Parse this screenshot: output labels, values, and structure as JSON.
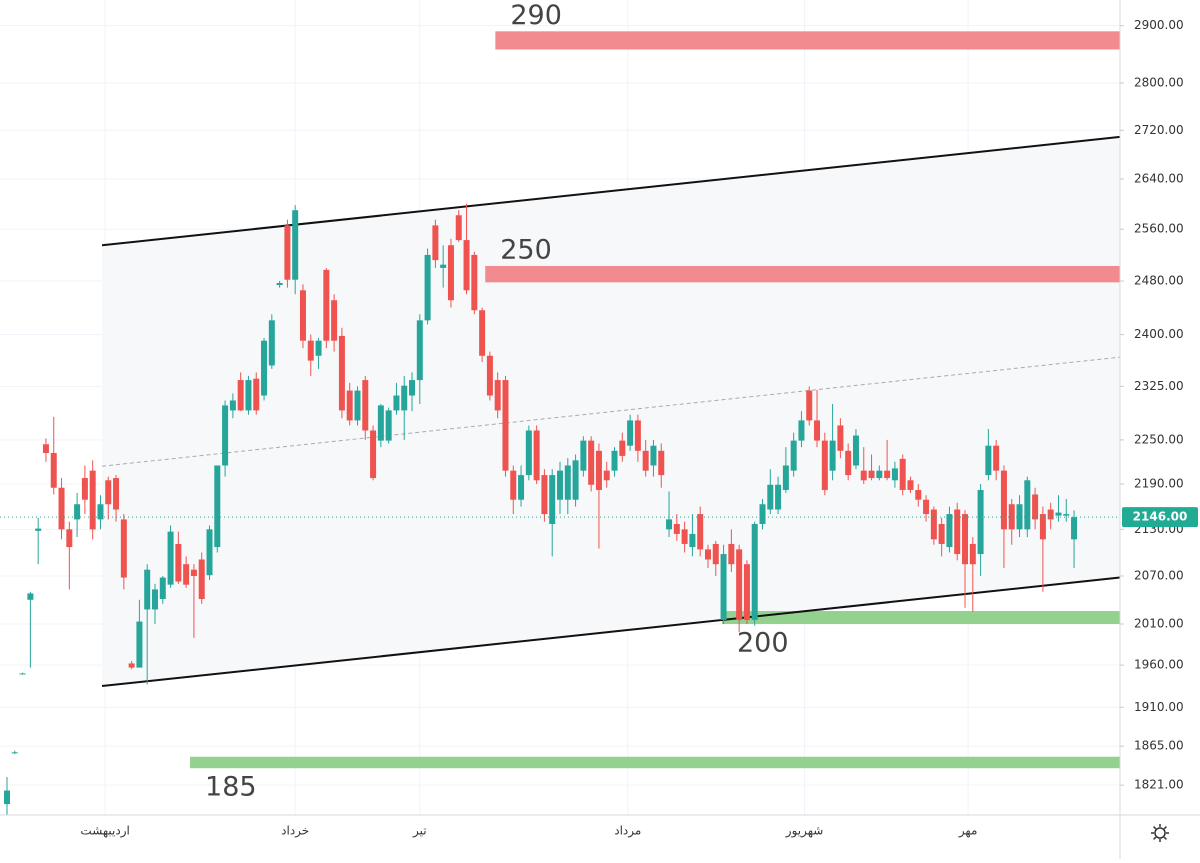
{
  "chart_data": {
    "type": "candlestick",
    "log_scale": true,
    "grid": true,
    "up_color": "#26a69a",
    "down_color": "#ef5350",
    "xlim": [
      -0.9,
      142.9
    ],
    "xticks": [
      {
        "value": 12.6,
        "label": "اردیبهشت"
      },
      {
        "value": 37,
        "label": "خرداد"
      },
      {
        "value": 53,
        "label": "تیر"
      },
      {
        "value": 79.7,
        "label": "مرداد"
      },
      {
        "value": 102.4,
        "label": "شهریور"
      },
      {
        "value": 123.4,
        "label": "مهر"
      }
    ],
    "ylim": [
      1788,
      2946
    ],
    "yticks": [
      {
        "value": 2900,
        "label": "2900.00"
      },
      {
        "value": 2800,
        "label": "2800.00"
      },
      {
        "value": 2720,
        "label": "2720.00"
      },
      {
        "value": 2640,
        "label": "2640.00"
      },
      {
        "value": 2560,
        "label": "2560.00"
      },
      {
        "value": 2480,
        "label": "2480.00"
      },
      {
        "value": 2400,
        "label": "2400.00"
      },
      {
        "value": 2325,
        "label": "2325.00"
      },
      {
        "value": 2250,
        "label": "2250.00"
      },
      {
        "value": 2190,
        "label": "2190.00"
      },
      {
        "value": 2130,
        "label": "2130.00"
      },
      {
        "value": 2070,
        "label": "2070.00"
      },
      {
        "value": 2010,
        "label": "2010.00"
      },
      {
        "value": 1960,
        "label": "1960.00"
      },
      {
        "value": 1910,
        "label": "1910.00"
      },
      {
        "value": 1865,
        "label": "1865.00"
      },
      {
        "value": 1821,
        "label": "1821.00"
      }
    ],
    "price_line": {
      "value": 2146,
      "label": "2146.00",
      "color": "#22ab94"
    },
    "trendlines": [
      {
        "start": [
          12.2,
          2535
        ],
        "end": [
          142.9,
          2709
        ],
        "style": "solid"
      },
      {
        "start": [
          12.2,
          1935
        ],
        "end": [
          142.9,
          2068
        ],
        "style": "solid"
      },
      {
        "start": [
          12.2,
          2214
        ],
        "end": [
          142.9,
          2367
        ],
        "style": "dashed"
      }
    ],
    "zones": [
      {
        "label": "290",
        "start": 62.7,
        "range": [
          2858,
          2890
        ],
        "color": "#f28b8f",
        "label_side": "above"
      },
      {
        "label": "250",
        "start": 61.4,
        "range": [
          2478,
          2503
        ],
        "color": "#f28b8f",
        "label_side": "above"
      },
      {
        "label": "200",
        "start": 91.8,
        "range": [
          2010,
          2026
        ],
        "color": "#93d18f",
        "label_side": "below"
      },
      {
        "label": "185",
        "start": 23.5,
        "range": [
          1840,
          1853
        ],
        "color": "#93d18f",
        "label_side": "below"
      }
    ],
    "ohlc": [
      [
        1800,
        1830,
        1788,
        1815
      ],
      [
        1858,
        1860,
        1856,
        1858
      ],
      [
        1950,
        1951,
        1949,
        1950
      ],
      [
        2040,
        2050,
        1957,
        2048
      ],
      [
        2128,
        2145,
        2085,
        2131
      ],
      [
        2244,
        2252,
        2220,
        2232
      ],
      [
        2232,
        2282,
        2176,
        2185
      ],
      [
        2185,
        2198,
        2117,
        2130
      ],
      [
        2130,
        2140,
        2053,
        2107
      ],
      [
        2143,
        2178,
        2120,
        2163
      ],
      [
        2198,
        2215,
        2150,
        2169
      ],
      [
        2208,
        2222,
        2117,
        2130
      ],
      [
        2143,
        2175,
        2130,
        2163
      ],
      [
        2195,
        2200,
        2143,
        2163
      ],
      [
        2198,
        2202,
        2140,
        2156
      ],
      [
        2143,
        2150,
        2053,
        2068
      ],
      [
        1962,
        1965,
        1955,
        1957
      ],
      [
        1957,
        2040,
        1957,
        2013
      ],
      [
        2028,
        2085,
        1937,
        2078
      ],
      [
        2028,
        2060,
        2010,
        2053
      ],
      [
        2041,
        2070,
        2035,
        2068
      ],
      [
        2059,
        2135,
        2055,
        2127
      ],
      [
        2111,
        2127,
        2060,
        2063
      ],
      [
        2085,
        2095,
        2055,
        2059
      ],
      [
        2078,
        2085,
        1993,
        2070
      ],
      [
        2091,
        2100,
        2035,
        2041
      ],
      [
        2071,
        2135,
        2065,
        2130
      ],
      [
        2107,
        2215,
        2100,
        2215
      ],
      [
        2215,
        2305,
        2200,
        2298
      ],
      [
        2291,
        2315,
        2280,
        2305
      ],
      [
        2334,
        2345,
        2290,
        2291
      ],
      [
        2291,
        2340,
        2285,
        2334
      ],
      [
        2336,
        2345,
        2285,
        2291
      ],
      [
        2312,
        2395,
        2305,
        2391
      ],
      [
        2355,
        2430,
        2350,
        2421
      ],
      [
        2474,
        2480,
        2470,
        2477
      ],
      [
        2566,
        2575,
        2470,
        2482
      ],
      [
        2482,
        2598,
        2460,
        2590
      ],
      [
        2466,
        2475,
        2380,
        2391
      ],
      [
        2391,
        2400,
        2340,
        2362
      ],
      [
        2369,
        2395,
        2350,
        2391
      ],
      [
        2497,
        2500,
        2380,
        2391
      ],
      [
        2451,
        2460,
        2375,
        2391
      ],
      [
        2398,
        2410,
        2280,
        2291
      ],
      [
        2319,
        2330,
        2270,
        2277
      ],
      [
        2277,
        2325,
        2270,
        2319
      ],
      [
        2334,
        2340,
        2250,
        2263
      ],
      [
        2263,
        2270,
        2195,
        2198
      ],
      [
        2249,
        2300,
        2240,
        2298
      ],
      [
        2249,
        2295,
        2245,
        2291
      ],
      [
        2291,
        2330,
        2285,
        2312
      ],
      [
        2291,
        2340,
        2250,
        2326
      ],
      [
        2312,
        2345,
        2290,
        2334
      ],
      [
        2334,
        2430,
        2300,
        2421
      ],
      [
        2421,
        2530,
        2415,
        2520
      ],
      [
        2566,
        2575,
        2500,
        2512
      ],
      [
        2500,
        2535,
        2470,
        2505
      ],
      [
        2535,
        2545,
        2440,
        2451
      ],
      [
        2582,
        2590,
        2540,
        2543
      ],
      [
        2543,
        2600,
        2460,
        2466
      ],
      [
        2520,
        2525,
        2430,
        2436
      ],
      [
        2436,
        2440,
        2360,
        2369
      ],
      [
        2369,
        2375,
        2305,
        2312
      ],
      [
        2334,
        2345,
        2280,
        2291
      ],
      [
        2334,
        2340,
        2200,
        2208
      ],
      [
        2208,
        2215,
        2150,
        2169
      ],
      [
        2169,
        2215,
        2160,
        2202
      ],
      [
        2202,
        2270,
        2195,
        2263
      ],
      [
        2263,
        2270,
        2190,
        2195
      ],
      [
        2202,
        2210,
        2140,
        2150
      ],
      [
        2137,
        2210,
        2095,
        2202
      ],
      [
        2169,
        2220,
        2150,
        2208
      ],
      [
        2169,
        2225,
        2150,
        2215
      ],
      [
        2169,
        2230,
        2160,
        2222
      ],
      [
        2208,
        2255,
        2200,
        2249
      ],
      [
        2249,
        2255,
        2180,
        2189
      ],
      [
        2235,
        2245,
        2105,
        2182
      ],
      [
        2208,
        2220,
        2185,
        2195
      ],
      [
        2208,
        2240,
        2200,
        2235
      ],
      [
        2249,
        2260,
        2220,
        2228
      ],
      [
        2242,
        2285,
        2235,
        2277
      ],
      [
        2277,
        2285,
        2220,
        2235
      ],
      [
        2235,
        2250,
        2200,
        2208
      ],
      [
        2215,
        2250,
        2200,
        2242
      ],
      [
        2235,
        2245,
        2185,
        2202
      ],
      [
        2130,
        2180,
        2120,
        2143
      ],
      [
        2137,
        2150,
        2115,
        2124
      ],
      [
        2130,
        2140,
        2100,
        2111
      ],
      [
        2107,
        2150,
        2095,
        2124
      ],
      [
        2150,
        2160,
        2095,
        2104
      ],
      [
        2104,
        2110,
        2080,
        2091
      ],
      [
        2111,
        2115,
        2070,
        2085
      ],
      [
        2015,
        2110,
        2010,
        2098
      ],
      [
        2111,
        2130,
        2075,
        2085
      ],
      [
        2104,
        2110,
        2000,
        2015
      ],
      [
        2085,
        2090,
        2010,
        2015
      ],
      [
        2015,
        2140,
        2008,
        2137
      ],
      [
        2137,
        2170,
        2130,
        2163
      ],
      [
        2156,
        2210,
        2150,
        2189
      ],
      [
        2156,
        2200,
        2150,
        2189
      ],
      [
        2182,
        2240,
        2178,
        2215
      ],
      [
        2208,
        2260,
        2200,
        2249
      ],
      [
        2249,
        2290,
        2240,
        2277
      ],
      [
        2319,
        2325,
        2270,
        2277
      ],
      [
        2277,
        2320,
        2240,
        2249
      ],
      [
        2249,
        2260,
        2175,
        2182
      ],
      [
        2208,
        2300,
        2195,
        2249
      ],
      [
        2270,
        2280,
        2225,
        2235
      ],
      [
        2235,
        2245,
        2195,
        2202
      ],
      [
        2215,
        2265,
        2210,
        2256
      ],
      [
        2208,
        2240,
        2190,
        2195
      ],
      [
        2208,
        2230,
        2195,
        2198
      ],
      [
        2198,
        2215,
        2195,
        2208
      ],
      [
        2208,
        2250,
        2195,
        2198
      ],
      [
        2195,
        2220,
        2185,
        2211
      ],
      [
        2224,
        2230,
        2175,
        2182
      ],
      [
        2195,
        2200,
        2178,
        2182
      ],
      [
        2182,
        2190,
        2160,
        2169
      ],
      [
        2169,
        2175,
        2140,
        2150
      ],
      [
        2156,
        2160,
        2110,
        2117
      ],
      [
        2137,
        2145,
        2095,
        2111
      ],
      [
        2107,
        2160,
        2100,
        2150
      ],
      [
        2156,
        2165,
        2090,
        2098
      ],
      [
        2150,
        2155,
        2030,
        2085
      ],
      [
        2111,
        2120,
        2025,
        2085
      ],
      [
        2098,
        2190,
        2070,
        2182
      ],
      [
        2202,
        2265,
        2195,
        2242
      ],
      [
        2242,
        2250,
        2195,
        2208
      ],
      [
        2208,
        2215,
        2080,
        2130
      ],
      [
        2163,
        2170,
        2110,
        2130
      ],
      [
        2130,
        2175,
        2120,
        2163
      ],
      [
        2130,
        2200,
        2120,
        2195
      ],
      [
        2176,
        2185,
        2130,
        2143
      ],
      [
        2150,
        2160,
        2050,
        2117
      ],
      [
        2156,
        2165,
        2130,
        2143
      ],
      [
        2148,
        2175,
        2140,
        2152
      ],
      [
        2148,
        2170,
        2140,
        2150
      ],
      [
        2117,
        2155,
        2080,
        2146
      ]
    ]
  }
}
